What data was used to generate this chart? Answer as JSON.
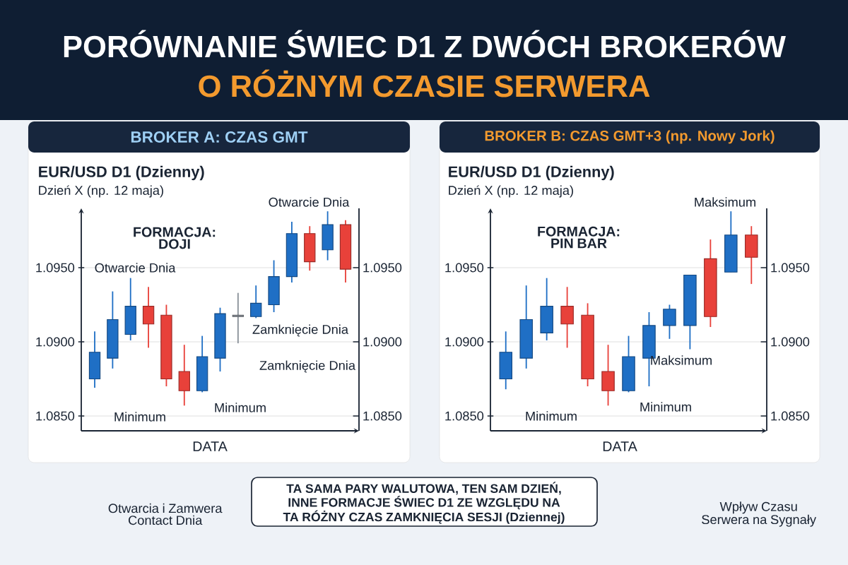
{
  "chart_data": [
    {
      "type": "other",
      "title": "PORÓWNANIE ŚWIEC D1 Z DWÓCH BROKERÓW",
      "subtitle": "O RÓŻNYM CZASIE SERWERA",
      "annotations": [
        "TA SAMA PARY WALUTOWA, TEN SAM DZIEŃ, INNE FORMACJE ŚWIEC D1 ZE WZGLĘDU NA TA RÓŻNY CZAS ZAMKNIĘCIA SESJI (Dziennej)",
        "Otwarcia i Zamwera Contact Dnia",
        "Wpływ Czasu Serwera na Sygnały"
      ]
    },
    {
      "type": "candlestick",
      "title": "BROKER A: CZAS GMT",
      "subtitle": "EUR/USD D1 (Dzienny)",
      "xlabel": "DATA",
      "annotations": [
        "Dzień X (np. 12 maja)",
        "Otwarcie Dnia",
        "Otwarcie Dnia",
        "FORMACJA: DOJI",
        "Zamknięcie Dnia",
        "Zamknięcie Dnia",
        "Minimum",
        "Minimum"
      ],
      "categories": [
        null,
        null,
        null,
        null,
        null,
        null,
        null,
        null,
        null,
        null,
        null,
        null,
        null,
        null,
        null
      ],
      "ohlc": [
        [
          1.0875,
          1.0907,
          1.0869,
          1.0893
        ],
        [
          1.0889,
          1.0934,
          1.0882,
          1.0915
        ],
        [
          1.0905,
          1.0943,
          1.0901,
          1.0924
        ],
        [
          1.0924,
          1.0937,
          1.0896,
          1.0912
        ],
        [
          1.0918,
          1.0925,
          1.087,
          1.0875
        ],
        [
          1.088,
          1.0898,
          1.0857,
          1.0867
        ],
        [
          1.0867,
          1.0904,
          1.0866,
          1.089
        ],
        [
          1.0889,
          1.0923,
          1.088,
          1.0919
        ],
        [
          1.0918,
          1.0933,
          1.0899,
          1.0917
        ],
        [
          1.0917,
          1.0938,
          1.0916,
          1.0926
        ],
        [
          1.0925,
          1.0955,
          1.092,
          1.0944
        ],
        [
          1.0944,
          1.0981,
          1.094,
          1.0973
        ],
        [
          1.0973,
          1.0978,
          1.0948,
          1.0954
        ],
        [
          1.0962,
          1.0988,
          1.0955,
          1.0979
        ],
        [
          1.0979,
          1.0982,
          1.094,
          1.0949
        ]
      ],
      "colors": [
        "#1f6fc5",
        "#1f6fc5",
        "#1f6fc5",
        "#e8413a",
        "#e8413a",
        "#e8413a",
        "#1f6fc5",
        "#1f6fc5",
        "#8a9199",
        "#1f6fc5",
        "#1f6fc5",
        "#1f6fc5",
        "#e8413a",
        "#1f6fc5",
        "#e8413a"
      ],
      "ylim": [
        1.084,
        1.099
      ],
      "yticks": [
        {
          "value": 1.085,
          "label": "1.0850"
        },
        {
          "value": 1.09,
          "label": "1.0900"
        },
        {
          "value": 1.095,
          "label": "1.0950"
        }
      ],
      "y2lim": [
        1.084,
        1.099
      ],
      "y2ticks": [
        {
          "value": 1.085,
          "label": "1.0850"
        },
        {
          "value": 1.09,
          "label": "1.0900"
        },
        {
          "value": 1.095,
          "label": "1.0950"
        }
      ],
      "grid": "y"
    },
    {
      "type": "candlestick",
      "title": "BROKER B: CZAS GMT+3 (np. Nowy Jork)",
      "subtitle": "EUR/USD D1 (Dzienny)",
      "xlabel": "DATA",
      "annotations": [
        "Dzień X (np. 12 maja)",
        "Maksimum",
        "FORMACJA: PIN BAR",
        "Maksimum",
        "Minimum",
        "Minimum"
      ],
      "categories": [
        null,
        null,
        null,
        null,
        null,
        null,
        null,
        null,
        null,
        null,
        null,
        null,
        null
      ],
      "ohlc": [
        [
          1.0875,
          1.0907,
          1.0868,
          1.0893
        ],
        [
          1.0889,
          1.0938,
          1.0882,
          1.0915
        ],
        [
          1.0906,
          1.0943,
          1.0901,
          1.0924
        ],
        [
          1.0924,
          1.0937,
          1.0896,
          1.0912
        ],
        [
          1.0918,
          1.0926,
          1.087,
          1.0875
        ],
        [
          1.088,
          1.0898,
          1.0857,
          1.0867
        ],
        [
          1.0867,
          1.0904,
          1.0866,
          1.089
        ],
        [
          1.0889,
          1.092,
          1.087,
          1.0911
        ],
        [
          1.0911,
          1.0925,
          1.0902,
          1.0922
        ],
        [
          1.0911,
          1.0945,
          1.0895,
          1.0945
        ],
        [
          1.0956,
          1.0969,
          1.091,
          1.0917
        ],
        [
          1.0947,
          1.0988,
          1.0947,
          1.0972
        ],
        [
          1.0972,
          1.0978,
          1.0939,
          1.0957
        ]
      ],
      "colors": [
        "#1f6fc5",
        "#1f6fc5",
        "#1f6fc5",
        "#e8413a",
        "#e8413a",
        "#e8413a",
        "#1f6fc5",
        "#1f6fc5",
        "#1f6fc5",
        "#1f6fc5",
        "#e8413a",
        "#1f6fc5",
        "#e8413a"
      ],
      "ylim": [
        1.084,
        1.099
      ],
      "yticks": [
        {
          "value": 1.085,
          "label": "1.0850"
        },
        {
          "value": 1.09,
          "label": "1.0900"
        },
        {
          "value": 1.095,
          "label": "1.0950"
        }
      ],
      "y2lim": [
        1.084,
        1.099
      ],
      "y2ticks": [
        {
          "value": 1.085,
          "label": "1.0850"
        },
        {
          "value": 1.09,
          "label": "1.0900"
        },
        {
          "value": 1.095,
          "label": "1.0950"
        }
      ],
      "grid": "y"
    }
  ]
}
